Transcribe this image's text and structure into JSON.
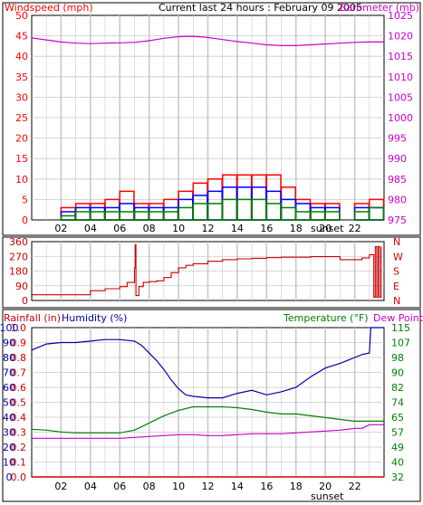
{
  "header": {
    "center_title": "Current last 24 hours : February 09 2005"
  },
  "colors": {
    "wind": "#ff0000",
    "gust": "#ff0000",
    "wind_avg": "#0000ff",
    "wind_low": "#008000",
    "barometer": "#cc00cc",
    "direction": "#cc0000",
    "rain": "#cc0000",
    "humidity": "#0000aa",
    "temperature": "#008000",
    "dewpoint": "#cc00cc",
    "grid": "#c8c8c8",
    "frame": "#000000"
  },
  "chart_data": [
    {
      "id": "wind_baro",
      "type": "line",
      "left_label": "Windspeed (mph)",
      "right_label": "Barometer (mb)",
      "y_left_ticks": [
        "0",
        "5",
        "10",
        "15",
        "20",
        "25",
        "30",
        "35",
        "40",
        "45",
        "50"
      ],
      "y_left_lim": [
        0,
        50
      ],
      "y_right_ticks": [
        "975",
        "980",
        "985",
        "990",
        "995",
        "1000",
        "1005",
        "1010",
        "1015",
        "1020",
        "1025"
      ],
      "y_right_lim": [
        975,
        1025
      ],
      "x_ticks": [
        "02",
        "04",
        "06",
        "08",
        "10",
        "12",
        "14",
        "16",
        "18",
        "20",
        "22"
      ],
      "x_note": "sunset",
      "x_lim": [
        0,
        24
      ],
      "grid": true,
      "series": [
        {
          "key": "barometer",
          "axis": "right",
          "x": [
            0,
            1,
            2,
            3,
            4,
            5,
            6,
            7,
            8,
            9,
            10,
            11,
            12,
            13,
            14,
            15,
            16,
            17,
            18,
            19,
            20,
            21,
            22,
            23,
            24
          ],
          "y": [
            1019.5,
            1019,
            1018.5,
            1018.2,
            1018.1,
            1018.2,
            1018.3,
            1018.4,
            1018.8,
            1019.4,
            1019.8,
            1019.9,
            1019.6,
            1019.1,
            1018.6,
            1018.2,
            1017.8,
            1017.6,
            1017.6,
            1017.8,
            1018,
            1018.2,
            1018.4,
            1018.5,
            1018.5
          ]
        },
        {
          "key": "gust",
          "axis": "left",
          "x": [
            0,
            1,
            2,
            3,
            4,
            5,
            6,
            7,
            8,
            9,
            10,
            11,
            12,
            13,
            14,
            15,
            16,
            17,
            18,
            19,
            20,
            21,
            22,
            23,
            24
          ],
          "y": [
            0,
            0,
            3,
            4,
            4,
            5,
            7,
            4,
            4,
            5,
            7,
            9,
            10,
            11,
            11,
            11,
            11,
            8,
            5,
            4,
            4,
            0,
            4,
            5,
            5
          ]
        },
        {
          "key": "wind_avg",
          "axis": "left",
          "x": [
            0,
            1,
            2,
            3,
            4,
            5,
            6,
            7,
            8,
            9,
            10,
            11,
            12,
            13,
            14,
            15,
            16,
            17,
            18,
            19,
            20,
            21,
            22,
            23,
            24
          ],
          "y": [
            0,
            0,
            2,
            3,
            3,
            3,
            4,
            3,
            3,
            3,
            5,
            6,
            7,
            8,
            8,
            8,
            7,
            5,
            4,
            3,
            3,
            0,
            3,
            3,
            3
          ]
        },
        {
          "key": "wind_low",
          "axis": "left",
          "x": [
            0,
            1,
            2,
            3,
            4,
            5,
            6,
            7,
            8,
            9,
            10,
            11,
            12,
            13,
            14,
            15,
            16,
            17,
            18,
            19,
            20,
            21,
            22,
            23,
            24
          ],
          "y": [
            0,
            0,
            1,
            2,
            2,
            2,
            2,
            2,
            2,
            2,
            3,
            4,
            4,
            5,
            5,
            5,
            4,
            3,
            2,
            2,
            2,
            0,
            2,
            3,
            3
          ]
        }
      ]
    },
    {
      "id": "direction",
      "type": "line",
      "y_left_ticks": [
        "0",
        "90",
        "180",
        "270",
        "360"
      ],
      "y_left_lim": [
        0,
        360
      ],
      "y_right_ticks": [
        "N",
        "E",
        "S",
        "W",
        "N"
      ],
      "series": [
        {
          "key": "direction",
          "x": [
            0,
            1,
            2,
            3,
            3.5,
            4,
            5,
            6,
            6.5,
            7,
            7.05,
            7.1,
            7.3,
            7.6,
            8,
            8.5,
            9,
            9.5,
            10,
            10.5,
            11,
            12,
            13,
            14,
            15,
            16,
            17,
            18,
            19,
            20,
            21,
            22,
            22.5,
            23,
            23.2,
            23.3,
            23.4,
            23.5,
            23.6,
            23.7,
            23.8
          ],
          "y": [
            35,
            35,
            35,
            35,
            35,
            60,
            72,
            85,
            110,
            200,
            340,
            30,
            85,
            110,
            115,
            120,
            140,
            170,
            200,
            215,
            225,
            240,
            250,
            255,
            258,
            262,
            265,
            265,
            268,
            268,
            250,
            250,
            260,
            280,
            280,
            20,
            330,
            20,
            330,
            20,
            330
          ]
        }
      ]
    },
    {
      "id": "rain_hum_temp",
      "type": "line",
      "left_label_rain": "Rainfall (in)",
      "left_label_humidity": "Humidity (%)",
      "right_label_temperature": "Temperature (°F)",
      "right_label_dewpoint": "Dew Point",
      "y_rain_ticks": [
        "0.0",
        "0.1",
        "0.2",
        "0.3",
        "0.4",
        "0.5",
        "0.6",
        "0.7",
        "0.8",
        "0.9",
        "1.0"
      ],
      "y_humidity_ticks": [
        "0",
        "10",
        "20",
        "30",
        "40",
        "50",
        "60",
        "70",
        "80",
        "90",
        "100"
      ],
      "y_right_ticks": [
        "32",
        "40",
        "49",
        "57",
        "65",
        "74",
        "82",
        "90",
        "98",
        "107",
        "115"
      ],
      "y_right_lim": [
        32,
        115
      ],
      "x_ticks": [
        "02",
        "04",
        "06",
        "08",
        "10",
        "12",
        "14",
        "16",
        "18",
        "20",
        "22"
      ],
      "x_note": "sunset",
      "x_lim": [
        0,
        24
      ],
      "grid": true,
      "series": [
        {
          "key": "humidity",
          "axis": "left_humidity",
          "x": [
            0,
            1,
            2,
            3,
            4,
            5,
            6,
            7,
            7.5,
            8,
            8.5,
            9,
            9.5,
            10,
            10.5,
            11,
            12,
            13,
            14,
            15,
            16,
            17,
            18,
            19,
            20,
            21,
            22,
            22.5,
            23,
            23.1,
            24
          ],
          "y": [
            85,
            89,
            90,
            90,
            91,
            92,
            92,
            91,
            88,
            83,
            78,
            72,
            65,
            59,
            55,
            54,
            53,
            53,
            56,
            58,
            55,
            57,
            60,
            67,
            73,
            76,
            80,
            82,
            83,
            100,
            100
          ]
        },
        {
          "key": "temperature",
          "axis": "right",
          "x": [
            0,
            1,
            2,
            3,
            4,
            5,
            6,
            7,
            8,
            9,
            10,
            11,
            12,
            13,
            14,
            15,
            16,
            17,
            18,
            19,
            20,
            21,
            22,
            23,
            24
          ],
          "y": [
            58.5,
            58,
            57,
            56.5,
            56.5,
            56.5,
            56.5,
            58,
            62,
            66,
            69,
            71,
            71,
            71,
            70.5,
            69.5,
            68,
            67,
            67,
            66,
            65,
            64,
            63,
            63,
            63
          ]
        },
        {
          "key": "dewpoint",
          "axis": "right",
          "x": [
            0,
            1,
            2,
            3,
            4,
            5,
            6,
            7,
            8,
            9,
            10,
            11,
            12,
            13,
            14,
            15,
            16,
            17,
            18,
            19,
            20,
            21,
            22,
            22.5,
            23,
            24
          ],
          "y": [
            53.5,
            53.5,
            53.5,
            53.5,
            53.5,
            53.5,
            53.5,
            54,
            54.5,
            55,
            55.5,
            55.5,
            55,
            55,
            55.5,
            56,
            56,
            56,
            56.5,
            57,
            57.5,
            58,
            59,
            59,
            61,
            61
          ]
        },
        {
          "key": "rain",
          "axis": "left_rain",
          "x": [
            0,
            24
          ],
          "y": [
            0,
            0
          ]
        }
      ]
    }
  ]
}
